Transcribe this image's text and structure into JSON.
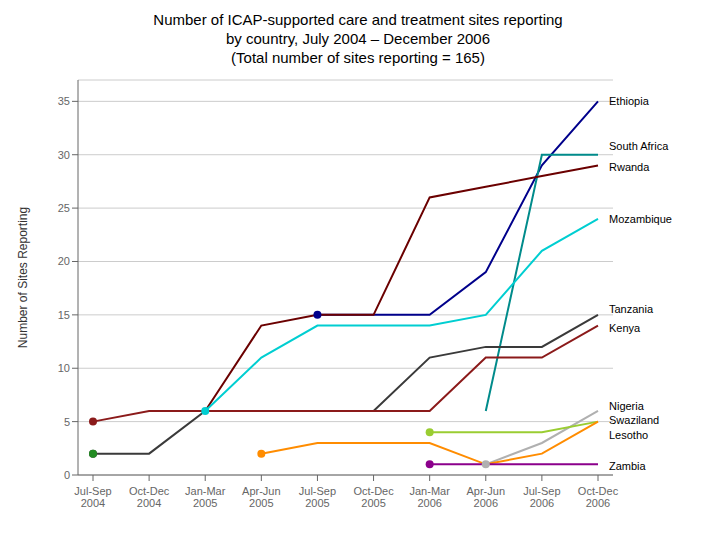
{
  "chart_data": {
    "type": "line",
    "title": "Number of ICAP-supported care and treatment sites reporting\nby country, July 2004 – December 2006\n(Total number of sites reporting = 165)",
    "y_label": "Number of Sites Reporting",
    "categories": [
      "Jul-Sep\n2004",
      "Oct-Dec\n2004",
      "Jan-Mar\n2005",
      "Apr-Jun\n2005",
      "Jul-Sep\n2005",
      "Oct-Dec\n2005",
      "Jan-Mar\n2006",
      "Apr-Jun\n2006",
      "Jul-Sep\n2006",
      "Oct-Dec\n2006"
    ],
    "ylim": [
      0,
      37
    ],
    "yticks": [
      0,
      5,
      10,
      15,
      20,
      25,
      30,
      35
    ],
    "grid": true,
    "series": [
      {
        "name": "Ethiopia",
        "color": "#00008B",
        "values": [
          null,
          null,
          null,
          null,
          15,
          15,
          15,
          19,
          29,
          35
        ],
        "label_y": 35.0
      },
      {
        "name": "South Africa",
        "color": "#008B8B",
        "values": [
          null,
          null,
          null,
          null,
          null,
          null,
          null,
          6,
          30,
          30
        ],
        "label_y": 30.8
      },
      {
        "name": "Rwanda",
        "color": "#6B0000",
        "values": [
          null,
          null,
          6,
          14,
          15,
          15,
          26,
          27,
          28,
          29
        ],
        "label_y": 28.8
      },
      {
        "name": "Mozambique",
        "color": "#00CED1",
        "values": [
          null,
          null,
          6,
          11,
          14,
          14,
          14,
          15,
          21,
          24
        ],
        "label_y": 24.0
      },
      {
        "name": "Tanzania",
        "color": "#3A3A3A",
        "values": [
          2,
          2,
          6,
          6,
          6,
          6,
          11,
          12,
          12,
          15
        ],
        "label_y": 15.5
      },
      {
        "name": "Kenya",
        "color": "#8B1A1A",
        "values": [
          5,
          6,
          6,
          6,
          6,
          6,
          6,
          11,
          11,
          14
        ],
        "label_y": 13.8
      },
      {
        "name": "Nigeria",
        "color": "#B0B0B0",
        "values": [
          null,
          null,
          null,
          null,
          null,
          null,
          null,
          1,
          3,
          6
        ],
        "label_y": 6.5
      },
      {
        "name": "Swaziland",
        "color": "#9ACD32",
        "values": [
          null,
          null,
          null,
          null,
          null,
          null,
          4,
          4,
          4,
          5
        ],
        "label_y": 5.1
      },
      {
        "name": "Lesotho",
        "color": "#FF8C00",
        "values": [
          null,
          null,
          null,
          2,
          3,
          3,
          3,
          1,
          2,
          5
        ],
        "label_y": 3.7
      },
      {
        "name": "Zambia",
        "color": "#8B008B",
        "values": [
          null,
          null,
          null,
          null,
          null,
          null,
          1,
          1,
          1,
          1
        ],
        "label_y": 0.8
      }
    ],
    "markers": [
      {
        "x": "Jul-Sep\n2004",
        "y": 5,
        "color": "#8B1A1A"
      },
      {
        "x": "Jul-Sep\n2005",
        "y": 15,
        "color": "#00008B"
      },
      {
        "x": "Jan-Mar\n2005",
        "y": 6,
        "color": "#00CED1"
      },
      {
        "x": "Apr-Jun\n2005",
        "y": 2,
        "color": "#FF8C00"
      },
      {
        "x": "Jan-Mar\n2006",
        "y": 1,
        "color": "#8B008B"
      },
      {
        "x": "Apr-Jun\n2006",
        "y": 1,
        "color": "#B0B0B0"
      },
      {
        "x": "Jan-Mar\n2006",
        "y": 4,
        "color": "#9ACD32"
      },
      {
        "x": "Jul-Sep\n2004",
        "y": 2,
        "color": "#3A3A3A"
      },
      {
        "x": "Jul-Sep\n2004",
        "y": 2,
        "color": "#228B22"
      }
    ]
  }
}
